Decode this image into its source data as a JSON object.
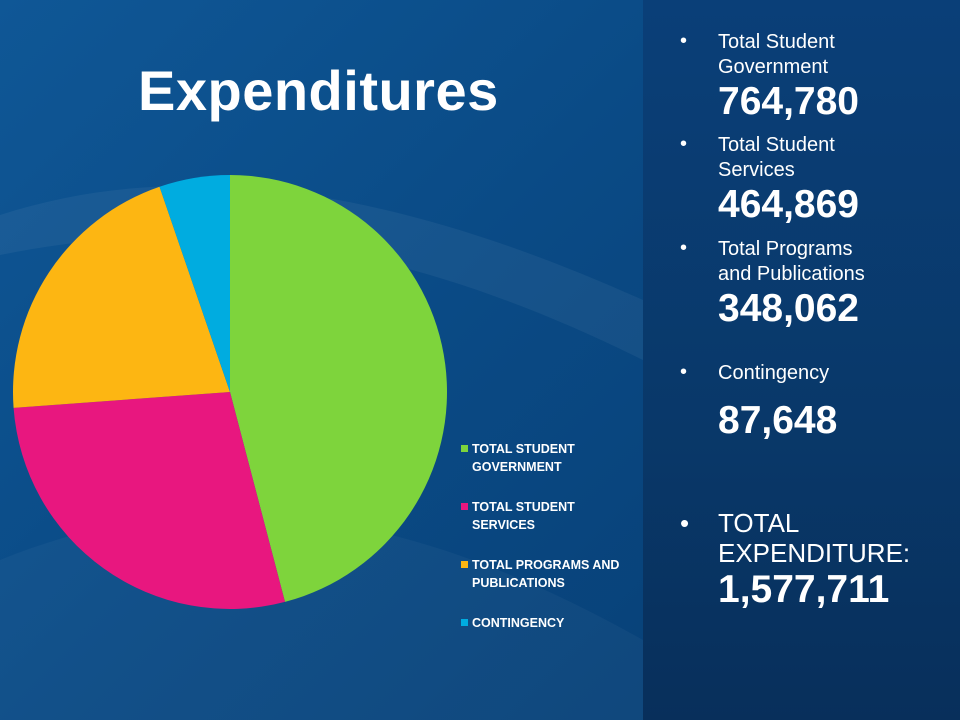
{
  "slide": {
    "title": "Expenditures",
    "colors": {
      "background": "#0b4a86",
      "panel": "#093a6e",
      "text": "#ffffff"
    }
  },
  "chart_data": {
    "type": "pie",
    "categories": [
      "TOTAL STUDENT GOVERNMENT",
      "TOTAL STUDENT SERVICES",
      "TOTAL PROGRAMS AND PUBLICATIONS",
      "CONTINGENCY"
    ],
    "values": [
      764780,
      464869,
      348062,
      87648
    ],
    "colors": [
      "#7ed43c",
      "#e8177f",
      "#fdb612",
      "#00ace0"
    ],
    "legend_position": "right"
  },
  "legend": {
    "items": [
      {
        "line1": "TOTAL STUDENT",
        "line2": "GOVERNMENT",
        "color": "#7ed43c"
      },
      {
        "line1": "TOTAL STUDENT",
        "line2": "SERVICES",
        "color": "#e8177f"
      },
      {
        "line1": "TOTAL PROGRAMS AND",
        "line2": "PUBLICATIONS",
        "color": "#fdb612"
      },
      {
        "line1": "CONTINGENCY",
        "line2": "",
        "color": "#00ace0"
      }
    ]
  },
  "stats": {
    "bullet": "•",
    "items": [
      {
        "line1": "Total Student",
        "line2": "Government",
        "value": "764,780"
      },
      {
        "line1": "Total Student",
        "line2": "Services",
        "value": "464,869"
      },
      {
        "line1": "Total Programs",
        "line2": "and Publications",
        "value": "348,062"
      },
      {
        "line1": "Contingency",
        "line2": "",
        "value": "87,648"
      }
    ],
    "total": {
      "line1": "TOTAL",
      "line2": "EXPENDITURE:",
      "value": "1,577,711"
    }
  }
}
